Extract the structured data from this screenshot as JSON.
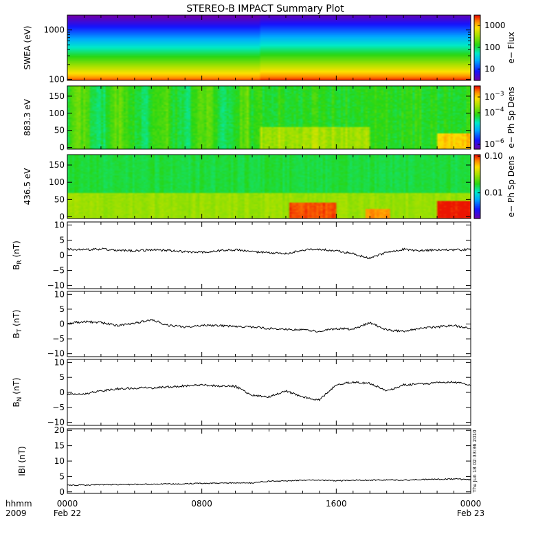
{
  "chart_data": {
    "type": "line",
    "title": "STEREO-B IMPACT Summary Plot",
    "time_axis": {
      "corner_labels": [
        "hhmm",
        "2009"
      ],
      "ticks": [
        {
          "hhmm": "0000",
          "date": "Feb 22"
        },
        {
          "hhmm": "0800",
          "date": ""
        },
        {
          "hhmm": "1600",
          "date": ""
        },
        {
          "hhmm": "0000",
          "date": "Feb 23"
        }
      ],
      "range_hours": [
        0,
        24
      ]
    },
    "timestamp": "Thu Jun 18 02:33:36 2010",
    "panels": [
      {
        "id": "swea",
        "kind": "spectrogram",
        "ylabel": "SWEA (eV)",
        "yscale": "log",
        "ylim": [
          95,
          2000
        ],
        "yticks": [
          {
            "v": 1000,
            "label": "1000"
          },
          {
            "v": 100,
            "label": "100"
          }
        ],
        "colorbar": {
          "label": "e− Flux",
          "scale": "log",
          "range": [
            3,
            3000
          ],
          "ticks": [
            {
              "v": 1000,
              "label": "1000"
            },
            {
              "v": 100,
              "label": "100"
            },
            {
              "v": 10,
              "label": "10"
            }
          ]
        }
      },
      {
        "id": "pad883",
        "kind": "spectrogram",
        "ylabel": "883.3 eV",
        "yscale": "linear",
        "ylim": [
          -5,
          180
        ],
        "yticks": [
          {
            "v": 150,
            "label": "150"
          },
          {
            "v": 100,
            "label": "100"
          },
          {
            "v": 50,
            "label": "50"
          },
          {
            "v": 0,
            "label": "0"
          }
        ],
        "colorbar": {
          "label": "e− Ph Sp Dens",
          "scale": "log",
          "range": [
            5e-07,
            0.005
          ],
          "ticks": [
            {
              "v": 0.001,
              "base": "10",
              "exp": "−3"
            },
            {
              "v": 0.0001,
              "base": "10",
              "exp": "−4"
            },
            {
              "v": 1e-06,
              "base": "10",
              "exp": "−6"
            }
          ]
        }
      },
      {
        "id": "pad436",
        "kind": "spectrogram",
        "ylabel": "436.5 eV",
        "yscale": "linear",
        "ylim": [
          -5,
          180
        ],
        "yticks": [
          {
            "v": 150,
            "label": "150"
          },
          {
            "v": 100,
            "label": "100"
          },
          {
            "v": 50,
            "label": "50"
          },
          {
            "v": 0,
            "label": "0"
          }
        ],
        "colorbar": {
          "label": "e− Ph Sp Dens",
          "scale": "log",
          "range": [
            0.002,
            0.11
          ],
          "ticks": [
            {
              "v": 0.1,
              "label": "0.10"
            },
            {
              "v": 0.01,
              "label": "0.01"
            }
          ]
        }
      },
      {
        "id": "br",
        "kind": "line",
        "ylabel": {
          "base": "B",
          "sub": "R",
          "unit": " (nT)"
        },
        "ylim": [
          -11,
          11
        ],
        "yticks": [
          {
            "v": 10,
            "label": "10"
          },
          {
            "v": 5,
            "label": "5"
          },
          {
            "v": 0,
            "label": "0"
          },
          {
            "v": -5,
            "label": "−5"
          },
          {
            "v": -10,
            "label": "−10"
          }
        ],
        "series": {
          "name": "",
          "x": [
            0,
            1,
            2,
            3,
            4,
            5,
            6,
            7,
            8,
            9,
            10,
            11,
            12,
            13,
            14,
            15,
            16,
            17,
            18,
            19,
            20,
            21,
            22,
            23,
            24
          ],
          "y": [
            2,
            1.8,
            2.1,
            1.6,
            1.5,
            1.8,
            1.6,
            1.2,
            1.0,
            1.5,
            1.8,
            1.2,
            0.8,
            0.5,
            1.8,
            2.0,
            1.5,
            0.5,
            -1.0,
            1.0,
            2.0,
            1.5,
            1.8,
            1.8,
            1.9
          ]
        }
      },
      {
        "id": "bt",
        "kind": "line",
        "ylabel": {
          "base": "B",
          "sub": "T",
          "unit": " (nT)"
        },
        "ylim": [
          -11,
          11
        ],
        "yticks": [
          {
            "v": 10,
            "label": "10"
          },
          {
            "v": 5,
            "label": "5"
          },
          {
            "v": 0,
            "label": "0"
          },
          {
            "v": -5,
            "label": "−5"
          },
          {
            "v": -10,
            "label": "−10"
          }
        ],
        "series": {
          "name": "",
          "x": [
            0,
            1,
            2,
            3,
            4,
            5,
            6,
            7,
            8,
            9,
            10,
            11,
            12,
            13,
            14,
            15,
            16,
            17,
            18,
            19,
            20,
            21,
            22,
            23,
            24
          ],
          "y": [
            0.2,
            0.8,
            0.5,
            -0.5,
            0.3,
            1.5,
            -0.5,
            -1.0,
            -0.5,
            -0.5,
            -0.8,
            -1.0,
            -1.5,
            -1.8,
            -2.0,
            -2.5,
            -1.5,
            -1.8,
            0.5,
            -2.0,
            -2.5,
            -1.5,
            -1.0,
            -0.5,
            -1.5
          ]
        }
      },
      {
        "id": "bn",
        "kind": "line",
        "ylabel": {
          "base": "B",
          "sub": "N",
          "unit": " (nT)"
        },
        "ylim": [
          -11,
          11
        ],
        "yticks": [
          {
            "v": 10,
            "label": "10"
          },
          {
            "v": 5,
            "label": "5"
          },
          {
            "v": 0,
            "label": "0"
          },
          {
            "v": -5,
            "label": "−5"
          },
          {
            "v": -10,
            "label": "−10"
          }
        ],
        "series": {
          "name": "",
          "x": [
            0,
            1,
            2,
            3,
            4,
            5,
            6,
            7,
            8,
            9,
            10,
            11,
            12,
            13,
            14,
            15,
            16,
            17,
            18,
            19,
            20,
            21,
            22,
            23,
            24
          ],
          "y": [
            -0.8,
            -0.5,
            0.5,
            1.2,
            1.5,
            1.5,
            1.8,
            2.2,
            2.5,
            2.2,
            2.0,
            -1.0,
            -1.5,
            0.5,
            -1.5,
            -2.5,
            2.5,
            3.5,
            3.0,
            0.5,
            2.5,
            2.8,
            3.2,
            3.5,
            2.5
          ]
        }
      },
      {
        "id": "bmag",
        "kind": "line",
        "ylabel": {
          "base": "IBI",
          "sub": "",
          "unit": " (nT)"
        },
        "ylim": [
          -0.5,
          20.5
        ],
        "yticks": [
          {
            "v": 20,
            "label": "20"
          },
          {
            "v": 15,
            "label": "15"
          },
          {
            "v": 10,
            "label": "10"
          },
          {
            "v": 5,
            "label": "5"
          },
          {
            "v": 0,
            "label": "0"
          }
        ],
        "series": {
          "name": "",
          "x": [
            0,
            1,
            2,
            3,
            4,
            5,
            6,
            7,
            8,
            9,
            10,
            11,
            12,
            13,
            14,
            15,
            16,
            17,
            18,
            19,
            20,
            21,
            22,
            23,
            24
          ],
          "y": [
            2.2,
            2.2,
            2.3,
            2.4,
            2.4,
            2.5,
            2.6,
            2.6,
            2.8,
            2.8,
            2.9,
            2.9,
            3.5,
            3.5,
            3.8,
            3.8,
            3.6,
            3.8,
            3.8,
            3.9,
            3.8,
            4.0,
            4.1,
            4.2,
            3.9
          ]
        }
      }
    ]
  }
}
